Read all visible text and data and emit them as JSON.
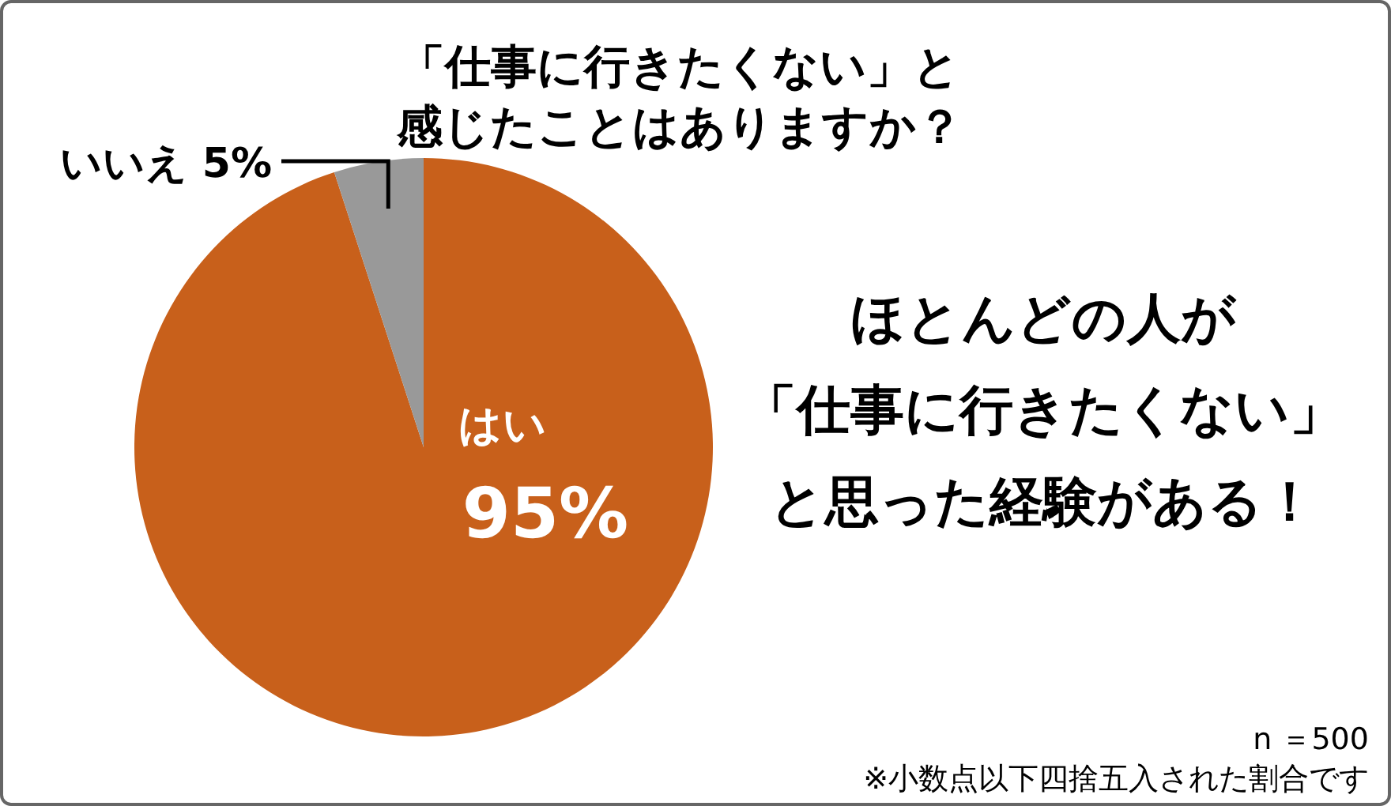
{
  "chart_data": {
    "type": "pie",
    "title": "「仕事に行きたくない」と感じたことはありますか？",
    "categories": [
      "はい",
      "いいえ"
    ],
    "values": [
      95,
      5
    ],
    "colors": [
      "#c8601b",
      "#999999"
    ],
    "value_labels": [
      "95%",
      "5%"
    ],
    "annotations": [
      "ほとんどの人が",
      "「仕事に行きたくない」",
      "と思った経験がある！",
      "n ＝500",
      "※小数点以下四捨五入された割合です"
    ]
  }
}
